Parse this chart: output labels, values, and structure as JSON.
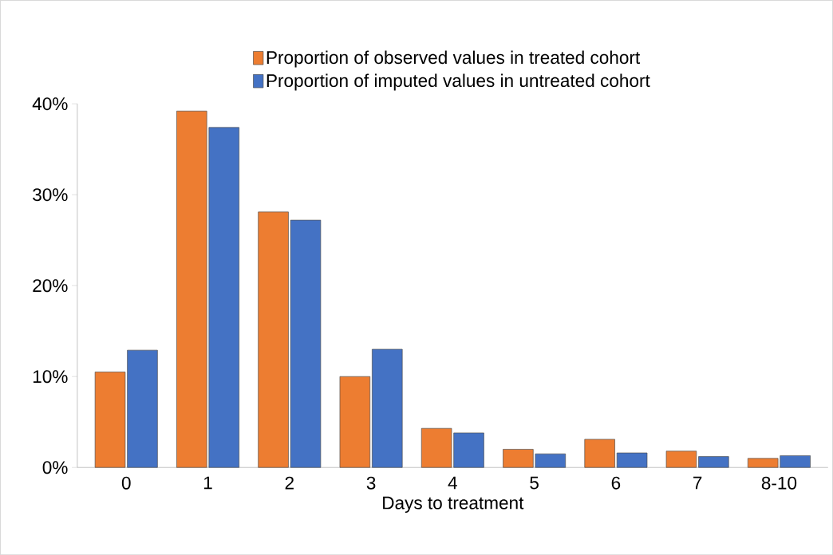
{
  "chart_data": {
    "type": "bar",
    "xlabel": "Days to treatment",
    "categories": [
      "0",
      "1",
      "2",
      "3",
      "4",
      "5",
      "6",
      "7",
      "8-10"
    ],
    "series": [
      {
        "name": "Proportion of observed values in treated cohort",
        "color": "#ed7d31",
        "values": [
          10.5,
          39.2,
          28.1,
          10.0,
          4.3,
          2.0,
          3.1,
          1.8,
          1.0
        ]
      },
      {
        "name": "Proportion of imputed values in untreated cohort",
        "color": "#4472c4",
        "values": [
          12.9,
          37.4,
          27.2,
          13.0,
          3.8,
          1.5,
          1.6,
          1.2,
          1.3
        ]
      }
    ],
    "ylim": [
      0,
      40
    ],
    "yticks": [
      {
        "value": 0,
        "label": "0%"
      },
      {
        "value": 10,
        "label": "10%"
      },
      {
        "value": 20,
        "label": "20%"
      },
      {
        "value": 30,
        "label": "30%"
      },
      {
        "value": 40,
        "label": "40%"
      }
    ],
    "grid": false,
    "legend": "top"
  }
}
